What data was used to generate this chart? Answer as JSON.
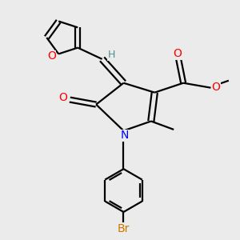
{
  "bg_color": "#ebebeb",
  "bond_width": 1.6,
  "figsize": [
    3.0,
    3.0
  ],
  "dpi": 100,
  "colors": {
    "O": "#ff0000",
    "N": "#0000ff",
    "Br": "#cc7700",
    "H": "#4a9090",
    "C": "#000000"
  },
  "xlim": [
    0,
    10
  ],
  "ylim": [
    0,
    10
  ]
}
